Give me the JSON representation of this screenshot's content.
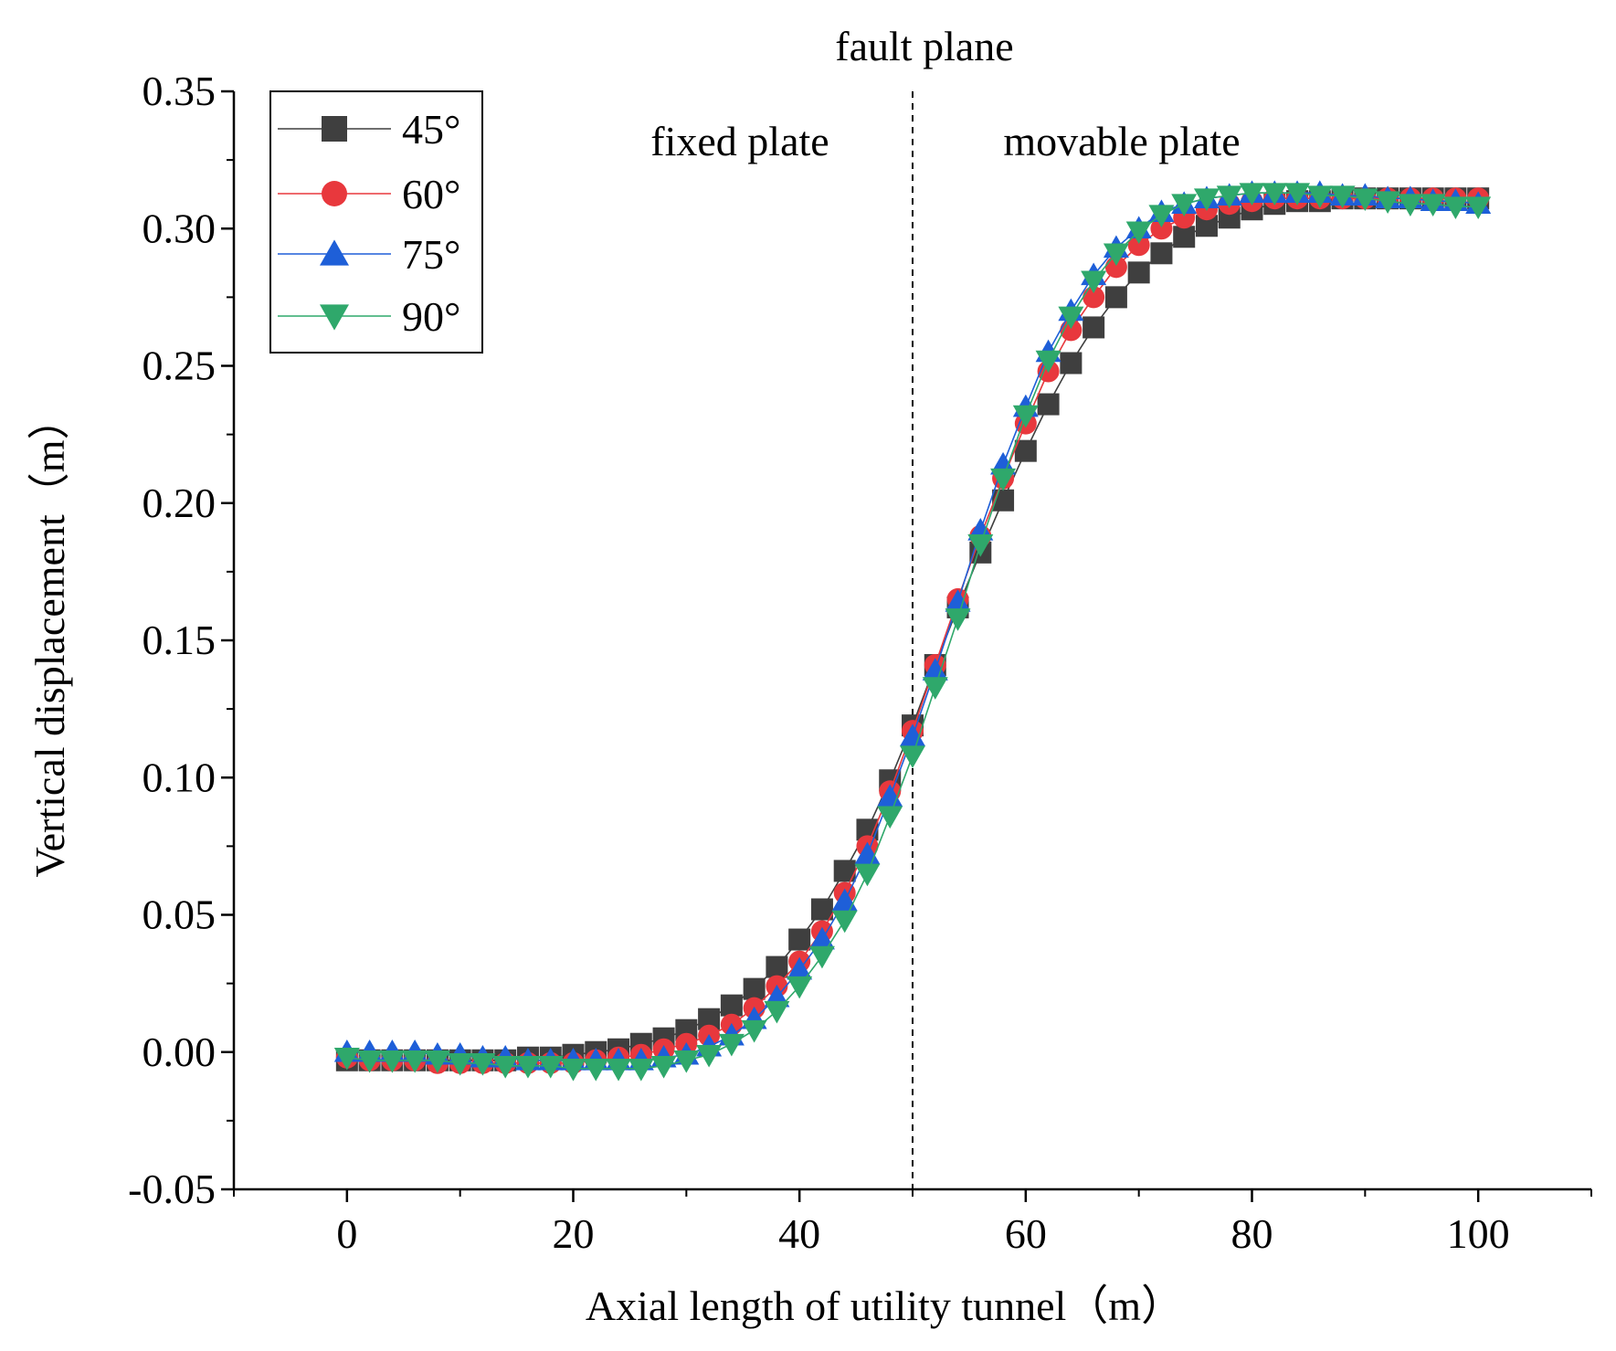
{
  "chart_data": {
    "type": "line",
    "title": "",
    "xlabel": "Axial length of utility tunnel（m）",
    "ylabel": "Vertical displacement（m）",
    "xlim": [
      -10,
      110
    ],
    "ylim": [
      -0.05,
      0.35
    ],
    "xticks": [
      0,
      20,
      40,
      60,
      80,
      100
    ],
    "xtick_labels": [
      "0",
      "20",
      "40",
      "60",
      "80",
      "100"
    ],
    "yticks": [
      -0.05,
      0.0,
      0.05,
      0.1,
      0.15,
      0.2,
      0.25,
      0.3,
      0.35
    ],
    "ytick_labels": [
      "-0.05",
      "0.00",
      "0.05",
      "0.10",
      "0.15",
      "0.20",
      "0.25",
      "0.30",
      "0.35"
    ],
    "fault_x": 50,
    "annotations": {
      "fault": "fault plane",
      "fixed": "fixed plate",
      "movable": "movable plate"
    },
    "legend_position": "top-left",
    "x": [
      0,
      2,
      4,
      6,
      8,
      10,
      12,
      14,
      16,
      18,
      20,
      22,
      24,
      26,
      28,
      30,
      32,
      34,
      36,
      38,
      40,
      42,
      44,
      46,
      48,
      50,
      52,
      54,
      56,
      58,
      60,
      62,
      64,
      66,
      68,
      70,
      72,
      74,
      76,
      78,
      80,
      82,
      84,
      86,
      88,
      90,
      92,
      94,
      96,
      98,
      100
    ],
    "series": [
      {
        "name": "45°",
        "color": "#3f3f3f",
        "marker": "square",
        "values": [
          -0.003,
          -0.003,
          -0.003,
          -0.003,
          -0.003,
          -0.003,
          -0.003,
          -0.003,
          -0.002,
          -0.002,
          -0.001,
          0.0,
          0.001,
          0.003,
          0.005,
          0.008,
          0.012,
          0.017,
          0.023,
          0.031,
          0.041,
          0.052,
          0.066,
          0.081,
          0.099,
          0.119,
          0.141,
          0.162,
          0.182,
          0.201,
          0.219,
          0.236,
          0.251,
          0.264,
          0.275,
          0.284,
          0.291,
          0.297,
          0.301,
          0.304,
          0.307,
          0.309,
          0.31,
          0.31,
          0.311,
          0.311,
          0.311,
          0.311,
          0.311,
          0.311,
          0.311
        ]
      },
      {
        "name": "60°",
        "color": "#e8383d",
        "marker": "circle",
        "values": [
          -0.002,
          -0.003,
          -0.003,
          -0.003,
          -0.004,
          -0.004,
          -0.004,
          -0.004,
          -0.004,
          -0.004,
          -0.004,
          -0.003,
          -0.002,
          -0.001,
          0.001,
          0.003,
          0.006,
          0.01,
          0.016,
          0.024,
          0.033,
          0.044,
          0.058,
          0.075,
          0.095,
          0.117,
          0.141,
          0.165,
          0.188,
          0.209,
          0.229,
          0.248,
          0.263,
          0.275,
          0.286,
          0.294,
          0.3,
          0.304,
          0.307,
          0.309,
          0.31,
          0.311,
          0.311,
          0.311,
          0.311,
          0.311,
          0.311,
          0.311,
          0.311,
          0.311,
          0.311
        ]
      },
      {
        "name": "75°",
        "color": "#1e5fd8",
        "marker": "triangle-up",
        "values": [
          0.0,
          0.0,
          0.0,
          0.0,
          -0.001,
          -0.001,
          -0.002,
          -0.002,
          -0.003,
          -0.003,
          -0.003,
          -0.003,
          -0.003,
          -0.003,
          -0.002,
          -0.001,
          0.002,
          0.006,
          0.012,
          0.02,
          0.03,
          0.041,
          0.055,
          0.072,
          0.093,
          0.115,
          0.139,
          0.164,
          0.19,
          0.214,
          0.235,
          0.255,
          0.27,
          0.283,
          0.293,
          0.3,
          0.306,
          0.309,
          0.311,
          0.312,
          0.313,
          0.313,
          0.313,
          0.313,
          0.312,
          0.312,
          0.311,
          0.311,
          0.31,
          0.31,
          0.309
        ]
      },
      {
        "name": "90°",
        "color": "#2fa86b",
        "marker": "triangle-down",
        "values": [
          -0.002,
          -0.003,
          -0.003,
          -0.003,
          -0.003,
          -0.004,
          -0.004,
          -0.005,
          -0.005,
          -0.005,
          -0.006,
          -0.006,
          -0.006,
          -0.006,
          -0.005,
          -0.003,
          -0.001,
          0.003,
          0.008,
          0.015,
          0.024,
          0.035,
          0.048,
          0.065,
          0.086,
          0.108,
          0.133,
          0.158,
          0.185,
          0.209,
          0.232,
          0.252,
          0.268,
          0.281,
          0.291,
          0.299,
          0.305,
          0.309,
          0.311,
          0.312,
          0.313,
          0.313,
          0.313,
          0.312,
          0.312,
          0.311,
          0.31,
          0.309,
          0.309,
          0.308,
          0.308
        ]
      }
    ]
  }
}
